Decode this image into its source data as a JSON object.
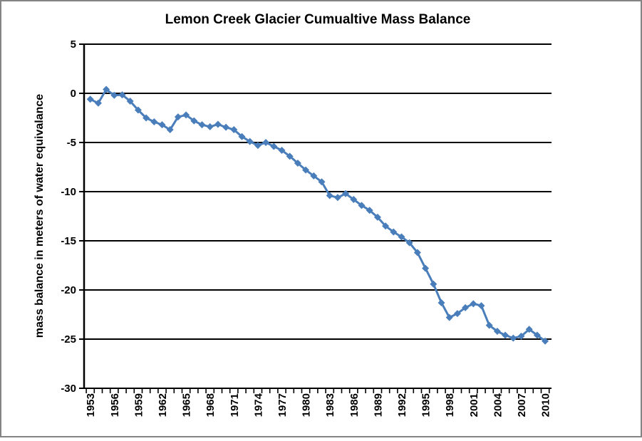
{
  "page": {
    "background": "#ffffff",
    "frame_border_color": "#848484"
  },
  "chart_data": {
    "type": "line",
    "title": "Lemon Creek Glacier Cumualtive Mass Balance",
    "ylabel": "mass balance in meters of water equivalance",
    "xlabel": "",
    "legend": "none",
    "grid": "horizontal",
    "gridline_color": "#000000",
    "axis_color": "#000000",
    "x": [
      1953,
      1954,
      1955,
      1956,
      1957,
      1958,
      1959,
      1960,
      1961,
      1962,
      1963,
      1964,
      1965,
      1966,
      1967,
      1968,
      1969,
      1970,
      1971,
      1972,
      1973,
      1974,
      1975,
      1976,
      1977,
      1978,
      1979,
      1980,
      1981,
      1982,
      1983,
      1984,
      1985,
      1986,
      1987,
      1988,
      1989,
      1990,
      1991,
      1992,
      1993,
      1994,
      1995,
      1996,
      1997,
      1998,
      1999,
      2000,
      2001,
      2002,
      2003,
      2004,
      2005,
      2006,
      2007,
      2008,
      2009,
      2010
    ],
    "series": [
      {
        "color": "#4a7ebb",
        "marker": "diamond",
        "values": [
          -0.6,
          -1.0,
          0.4,
          -0.2,
          -0.15,
          -0.8,
          -1.7,
          -2.5,
          -2.9,
          -3.2,
          -3.7,
          -2.4,
          -2.2,
          -2.8,
          -3.2,
          -3.4,
          -3.15,
          -3.45,
          -3.7,
          -4.4,
          -4.9,
          -5.3,
          -5.0,
          -5.4,
          -5.8,
          -6.4,
          -7.1,
          -7.8,
          -8.4,
          -9.0,
          -10.4,
          -10.6,
          -10.2,
          -10.8,
          -11.4,
          -11.9,
          -12.6,
          -13.5,
          -14.1,
          -14.6,
          -15.2,
          -16.2,
          -17.8,
          -19.4,
          -21.3,
          -22.8,
          -22.4,
          -21.8,
          -21.4,
          -21.6,
          -23.6,
          -24.2,
          -24.6,
          -24.9,
          -24.7,
          -24.0,
          -24.6,
          -25.2
        ]
      }
    ],
    "ylim": [
      -30,
      5
    ],
    "ytick_interval": 5,
    "ytick_labels": [
      "5",
      "0",
      "-5",
      "-10",
      "-15",
      "-20",
      "-25",
      "-30"
    ],
    "xtick_label_interval": 3,
    "xtick_labels": [
      "1953",
      "1956",
      "1959",
      "1962",
      "1965",
      "1968",
      "1971",
      "1974",
      "1977",
      "1980",
      "1983",
      "1986",
      "1989",
      "1992",
      "1995",
      "1998",
      "2001",
      "2004",
      "2007",
      "2010"
    ]
  }
}
